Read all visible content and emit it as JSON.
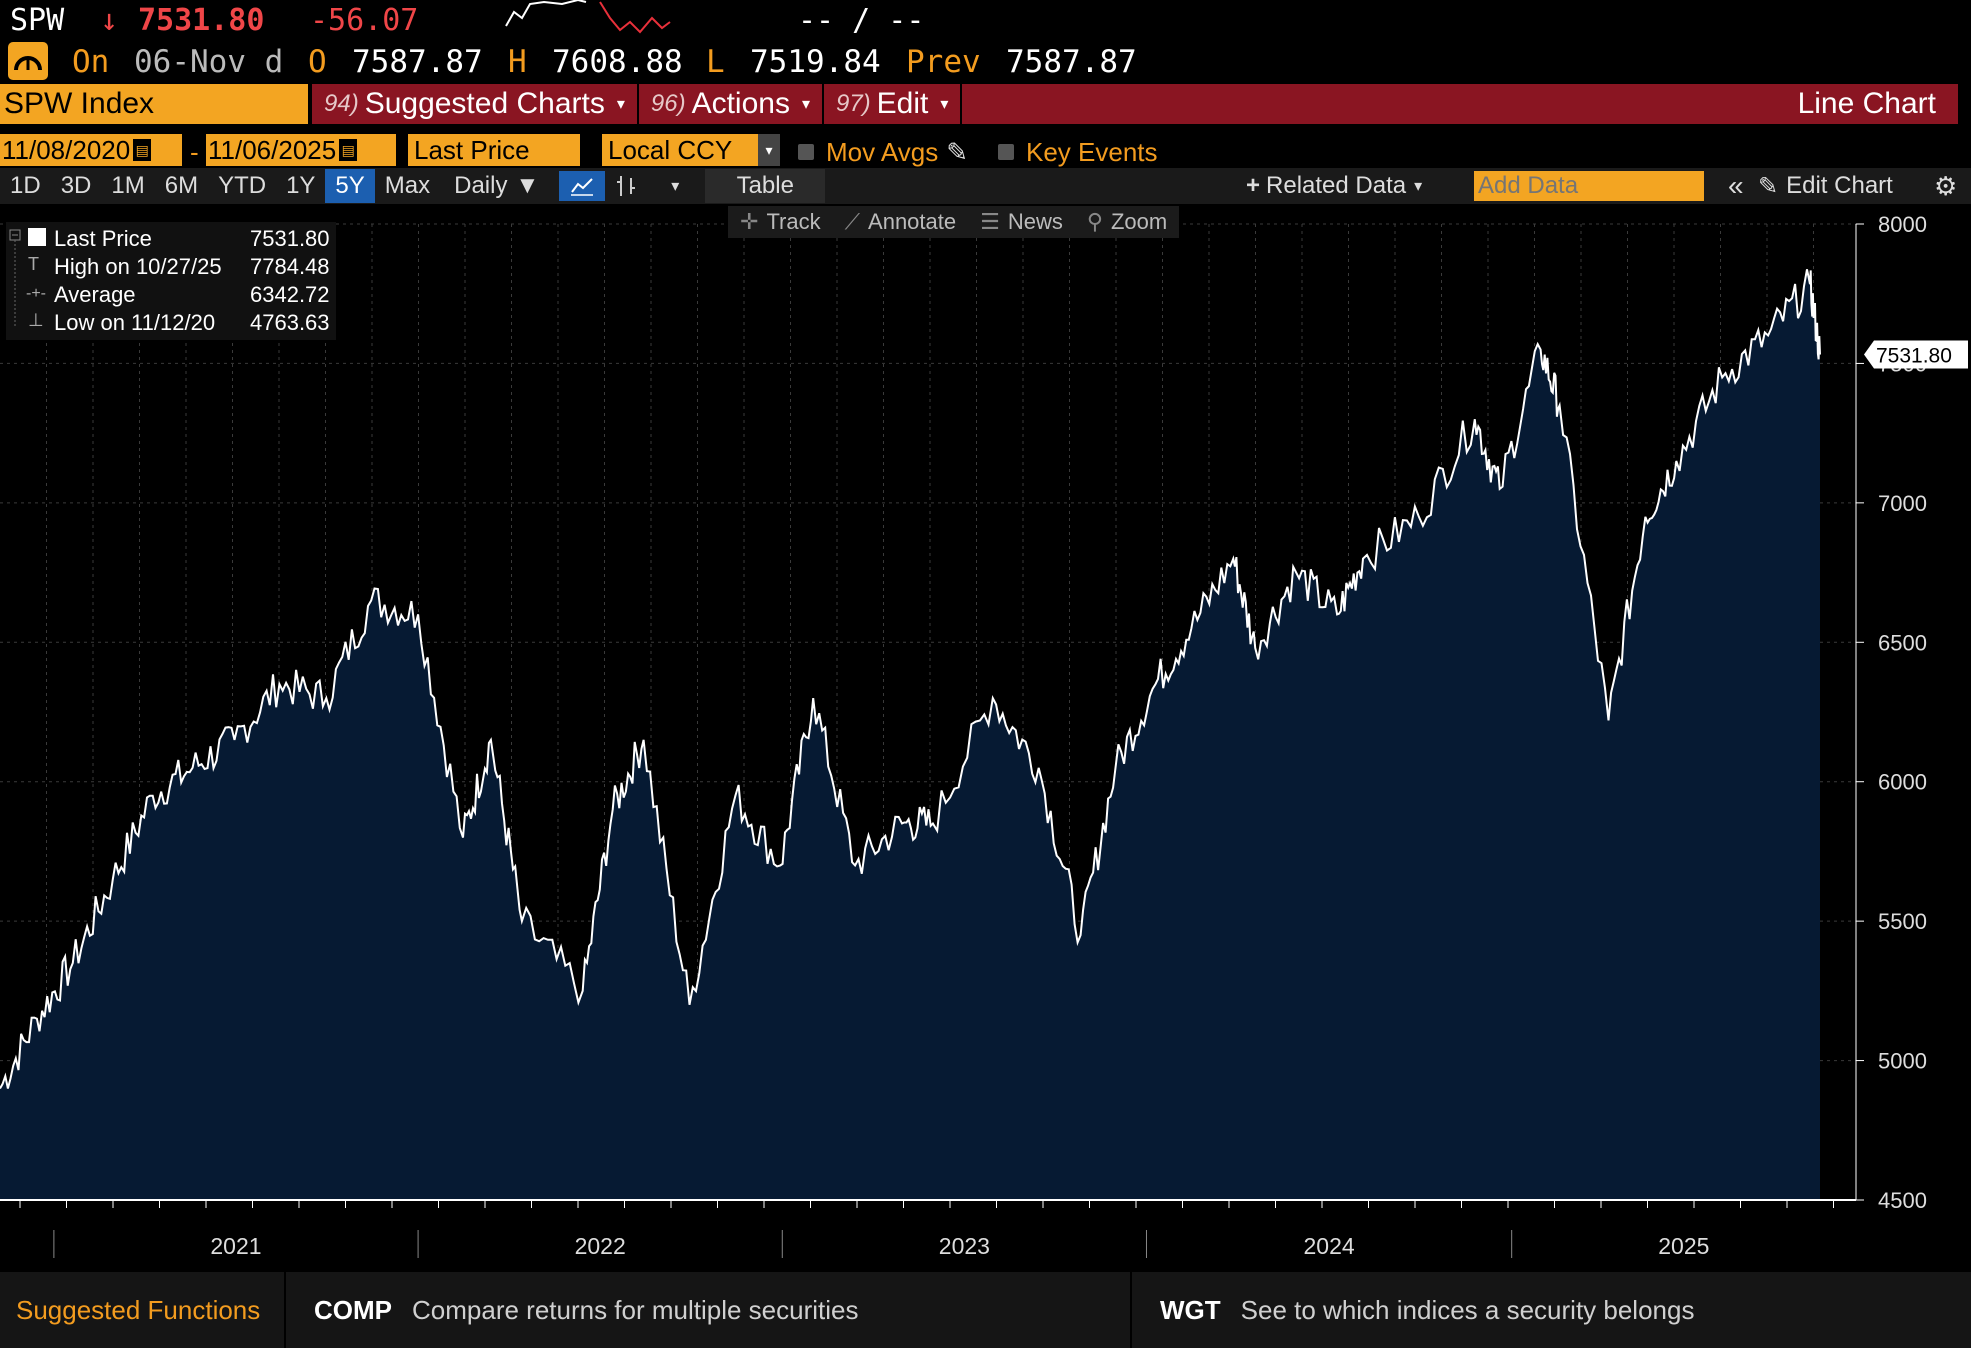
{
  "quote": {
    "ticker": "SPW",
    "arrow": "↓",
    "price": "7531.80",
    "change": "-56.07",
    "bid_ask": "-- / --",
    "on_label": "On",
    "date": "06-Nov d",
    "open_label": "O",
    "open": "7587.87",
    "high_label": "H",
    "high": "7608.88",
    "low_label": "L",
    "low": "7519.84",
    "prev_label": "Prev",
    "prev": "7587.87"
  },
  "menubar": {
    "security": "SPW Index",
    "suggested_num": "94)",
    "suggested_label": "Suggested Charts",
    "actions_num": "96)",
    "actions_label": "Actions",
    "edit_num": "97)",
    "edit_label": "Edit",
    "chart_type": "Line Chart"
  },
  "controls": {
    "start_date": "11/08/2020",
    "dash": "-",
    "end_date": "11/06/2025",
    "field": "Last Price",
    "currency": "Local CCY",
    "mov_avgs": "Mov Avgs",
    "key_events": "Key Events"
  },
  "toolbar": {
    "ranges": [
      "1D",
      "3D",
      "1M",
      "6M",
      "YTD",
      "1Y",
      "5Y",
      "Max"
    ],
    "selected_range": "5Y",
    "frequency": "Daily",
    "table": "Table",
    "related": "Related Data",
    "add_data_placeholder": "Add Data",
    "edit_chart": "Edit Chart"
  },
  "tools": {
    "track": "Track",
    "annotate": "Annotate",
    "news": "News",
    "zoom": "Zoom"
  },
  "legend": {
    "last_label": "Last Price",
    "last_value": "7531.80",
    "high_label": "High on 10/27/25",
    "high_value": "7784.48",
    "avg_label": "Average",
    "avg_value": "6342.72",
    "low_label": "Low on 11/12/20",
    "low_value": "4763.63"
  },
  "footer": {
    "suggested": "Suggested Functions",
    "comp_code": "COMP",
    "comp_desc": "Compare returns for multiple securities",
    "wgt_code": "WGT",
    "wgt_desc": "See to which indices a security belongs"
  },
  "colors": {
    "amber": "#f3a522",
    "maroon": "#8a1522",
    "area_fill": "#061a33",
    "line": "#ffffff",
    "down": "#e8303a"
  },
  "chart_data": {
    "type": "area",
    "ylim": [
      4500,
      8000
    ],
    "yticks": [
      4500,
      5000,
      5500,
      6000,
      6500,
      7000,
      7500,
      8000
    ],
    "ytick_labels": [
      "4500",
      "5000",
      "5500",
      "6000",
      "6500",
      "7000",
      "7500",
      "8000"
    ],
    "x_years": [
      "2021",
      "2022",
      "2023",
      "2024",
      "2025"
    ],
    "last_value_label": "7531.80",
    "series": [
      {
        "x": [
          "2020-11-08",
          "2020-12-15",
          "2021-01-20",
          "2021-03-01",
          "2021-04-10",
          "2021-05-20",
          "2021-07-01",
          "2021-08-15",
          "2021-10-01",
          "2021-11-15",
          "2022-01-01",
          "2022-02-15",
          "2022-03-15",
          "2022-04-15",
          "2022-06-15",
          "2022-07-15",
          "2022-08-15",
          "2022-09-30",
          "2022-11-15",
          "2022-12-30",
          "2023-02-01",
          "2023-03-15",
          "2023-05-01",
          "2023-06-01",
          "2023-07-31",
          "2023-09-15",
          "2023-10-27",
          "2023-12-01",
          "2024-01-10",
          "2024-02-15",
          "2024-03-28",
          "2024-04-19",
          "2024-05-30",
          "2024-07-10",
          "2024-08-05",
          "2024-09-30",
          "2024-11-25",
          "2024-12-20",
          "2025-01-30",
          "2025-02-18",
          "2025-04-08",
          "2025-05-15",
          "2025-06-15",
          "2025-07-31",
          "2025-09-15",
          "2025-10-27",
          "2025-11-06"
        ],
        "y": [
          4900,
          5150,
          5350,
          5650,
          5950,
          6050,
          6150,
          6350,
          6300,
          6650,
          6600,
          5800,
          6150,
          5500,
          5250,
          5900,
          6150,
          5200,
          5950,
          5700,
          6300,
          5700,
          5850,
          5850,
          6300,
          6050,
          5450,
          6050,
          6350,
          6550,
          6800,
          6480,
          6750,
          6600,
          6800,
          6950,
          7300,
          7050,
          7550,
          7350,
          6220,
          6950,
          7150,
          7450,
          7600,
          7784,
          7531.8
        ]
      }
    ]
  }
}
